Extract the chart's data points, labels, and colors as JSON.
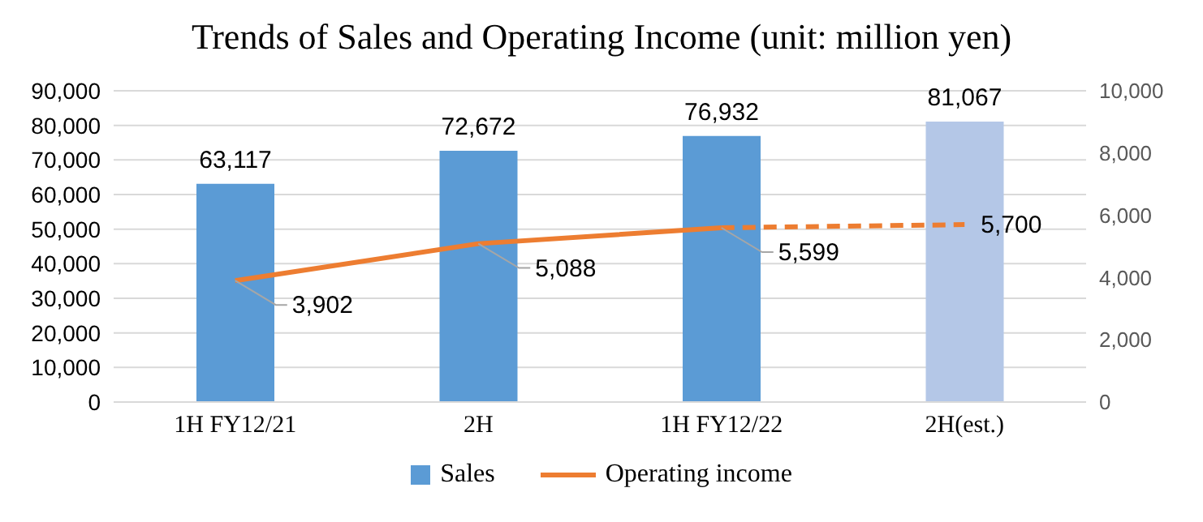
{
  "chart_data": {
    "type": "bar",
    "title": "Trends of Sales and Operating Income (unit: million yen)",
    "categories": [
      "1H FY12/21",
      "2H",
      "1H FY12/22",
      "2H(est.)"
    ],
    "series": [
      {
        "name": "Sales",
        "color": "#5b9bd5",
        "colors": [
          "#5b9bd5",
          "#5b9bd5",
          "#5b9bd5",
          "#b4c7e7"
        ],
        "values": [
          63117,
          72672,
          76932,
          81067
        ],
        "value_labels": [
          "63,117",
          "72,672",
          "76,932",
          "81,067"
        ]
      },
      {
        "name": "Operating income",
        "type": "line",
        "axis": "y2",
        "color": "#ed7d31",
        "line_style": "solid",
        "values": [
          3902,
          5088,
          5599,
          null
        ],
        "value_labels": [
          "3,902",
          "5,088",
          "5,599",
          null
        ]
      },
      {
        "type": "line",
        "axis": "y2",
        "color": "#ed7d31",
        "line_style": "dashed",
        "values": [
          null,
          null,
          5599,
          5700
        ],
        "value_labels": [
          null,
          null,
          null,
          "5,700"
        ]
      }
    ],
    "ylim": [
      0,
      90000
    ],
    "yticks": [
      0,
      {
        "value": 10000,
        "label": "10,000"
      },
      {
        "value": 20000,
        "label": "20,000"
      },
      {
        "value": 30000,
        "label": "30,000"
      },
      {
        "value": 40000,
        "label": "40,000"
      },
      {
        "value": 50000,
        "label": "50,000"
      },
      {
        "value": 60000,
        "label": "60,000"
      },
      {
        "value": 70000,
        "label": "70,000"
      },
      {
        "value": 80000,
        "label": "80,000"
      },
      {
        "value": 90000,
        "label": "90,000"
      }
    ],
    "y2lim": [
      0,
      10000
    ],
    "y2ticks": [
      0,
      {
        "value": 2000,
        "label": "2,000"
      },
      {
        "value": 4000,
        "label": "4,000"
      },
      {
        "value": 6000,
        "label": "6,000"
      },
      {
        "value": 8000,
        "label": "8,000"
      },
      {
        "value": 10000,
        "label": "10,000"
      }
    ],
    "grid": "y",
    "legend": "bottom",
    "marker": "none"
  }
}
